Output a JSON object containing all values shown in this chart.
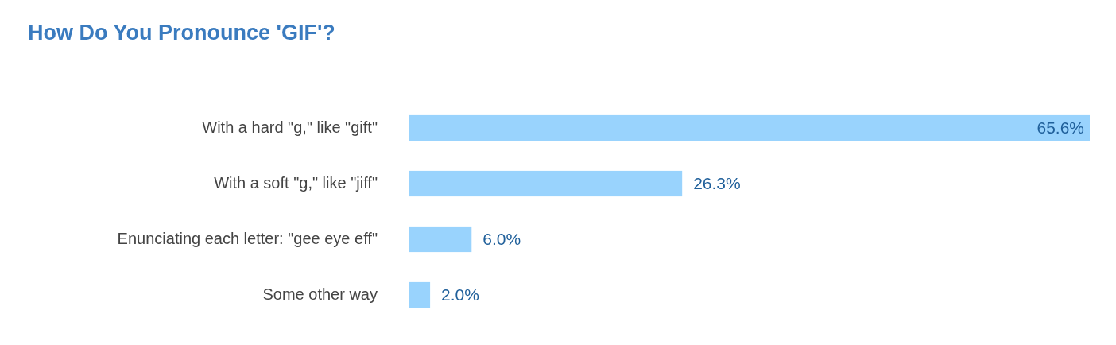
{
  "chart_data": {
    "type": "bar",
    "orientation": "horizontal",
    "title": "How Do You Pronounce 'GIF'?",
    "categories": [
      "With a hard \"g,\" like \"gift\"",
      "With a soft \"g,\" like \"jiff\"",
      "Enunciating each letter: \"gee eye eff\"",
      "Some other way"
    ],
    "values": [
      65.6,
      26.3,
      6.0,
      2.0
    ],
    "value_labels": [
      "65.6%",
      "26.3%",
      "6.0%",
      "2.0%"
    ],
    "color": "#99d3fd",
    "tick_labels": "y"
  }
}
